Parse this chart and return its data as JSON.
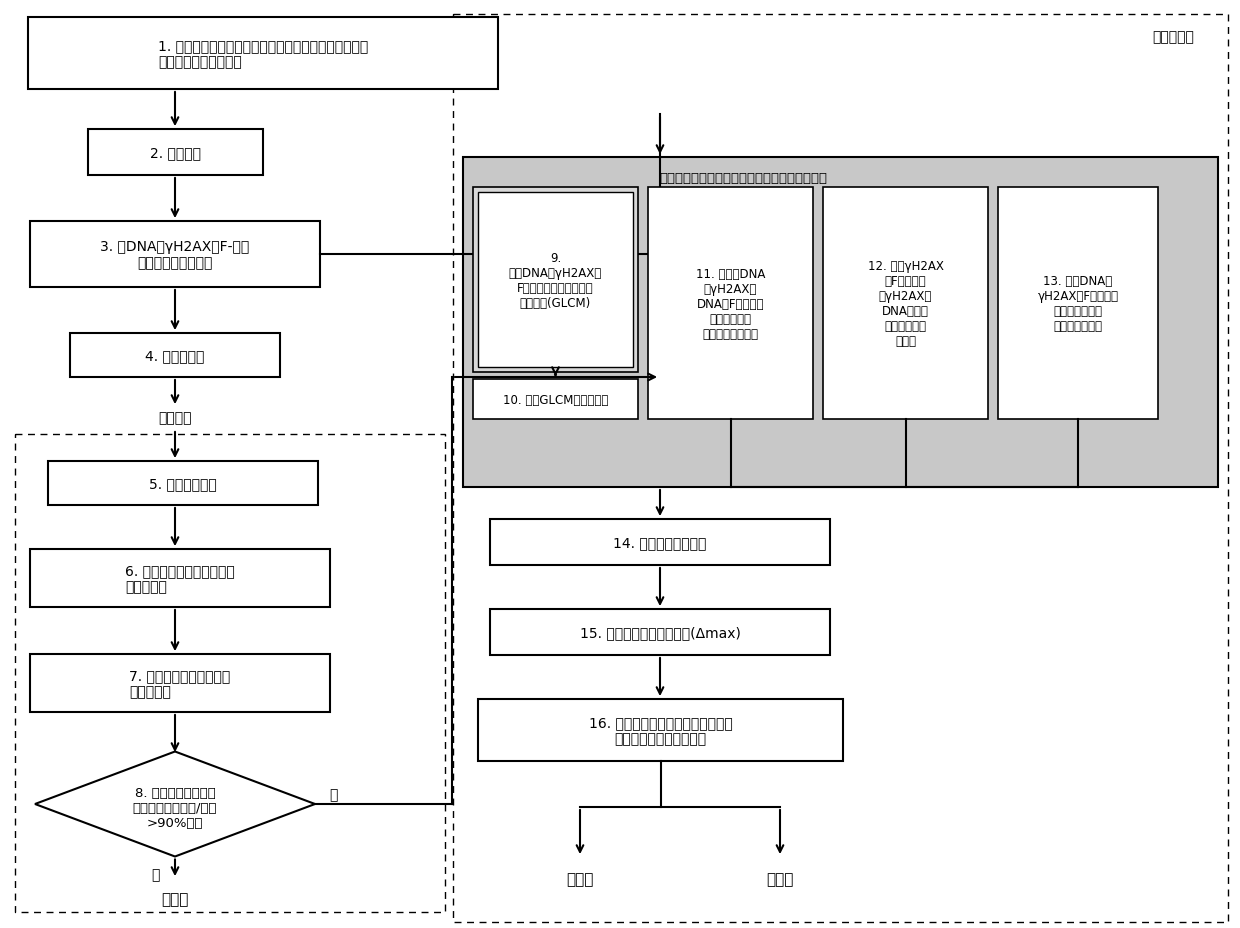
{
  "bg_color": "#ffffff",
  "step1_text": "1. 用一个浓度范围内的异生化合物处理人近端肾小管、\n支气管上皮或肺泡细胞",
  "step2_text": "2. 固定细胞",
  "step3_text": "3. 用DNA、γH2AX和F-肌动\n蛋白标志物标记细胞",
  "step4_text": "4. 使细胞成像",
  "cell_image_text": "细胞图像",
  "step5_text": "5. 校正图像背景",
  "step6_text": "6. 分割细胞并鉴定全细胞区\n和亚细胞区",
  "step7_text": "7. 针对所有浓度确定细胞\n死亡或计数",
  "step8_text": "8. 在一个或多个最高\n浓度时的细胞死亡/丧失\n>90%吗？",
  "spatial_label": "计算空间依赖性表型特征和空间独立性表型特征",
  "box9_text": "9.\n计算DNA、γH2AX和\nF肌动蛋白标志物的灰度\n共生矩阵(GLCM)",
  "box10_text": "10. 计算GLCM的统计数据",
  "box11_text": "11. 计算在DNA\n与γH2AX或\nDNA与F肌动蛋白\n标志物之间的\n归一化空间相关性",
  "box12_text": "12. 计算γH2AX\n与F肌动蛋白\n或γH2AX与\nDNA标志物\n之间的总强度\n的比率",
  "box13_text": "13. 计算DNA、\nγH2AX和F肌动蛋白\n标志物的总强度\n和强度变异系数",
  "step14_text": "14. 估计剂量反应曲线",
  "step15_text": "15. 计算特征的最大反应值(Δmax)",
  "step16_text": "16. 执行自动分类（使用随机森林、\n支持向量机或其他算法）",
  "computer_text": "计算机程序",
  "no_text": "否",
  "yes_text": "是",
  "toxic_text": "有毒性",
  "nontoxic_text": "无毒性"
}
